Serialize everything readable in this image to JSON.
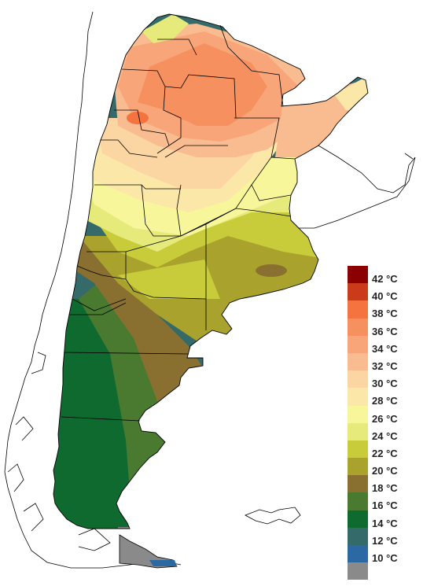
{
  "legend": {
    "items": [
      {
        "label": "42 °C",
        "color": "#8b0000"
      },
      {
        "label": "40 °C",
        "color": "#cc3a1c"
      },
      {
        "label": "38 °C",
        "color": "#f4733e"
      },
      {
        "label": "36 °C",
        "color": "#f6905e"
      },
      {
        "label": "34 °C",
        "color": "#f8a57a"
      },
      {
        "label": "32 °C",
        "color": "#f9bc90"
      },
      {
        "label": "30 °C",
        "color": "#fbd5a2"
      },
      {
        "label": "28 °C",
        "color": "#fbe8a8"
      },
      {
        "label": "26 °C",
        "color": "#f8f69a"
      },
      {
        "label": "24 °C",
        "color": "#e6ea7a"
      },
      {
        "label": "22 °C",
        "color": "#c8cc3a"
      },
      {
        "label": "20 °C",
        "color": "#a9a22c"
      },
      {
        "label": "18 °C",
        "color": "#8a7030"
      },
      {
        "label": "16 °C",
        "color": "#4a7a30"
      },
      {
        "label": "14 °C",
        "color": "#0f6a30"
      },
      {
        "label": "12 °C",
        "color": "#356a6a"
      },
      {
        "label": "10 °C",
        "color": "#2c69a3"
      },
      {
        "label": "",
        "color": "#8a8a8a"
      }
    ]
  }
}
